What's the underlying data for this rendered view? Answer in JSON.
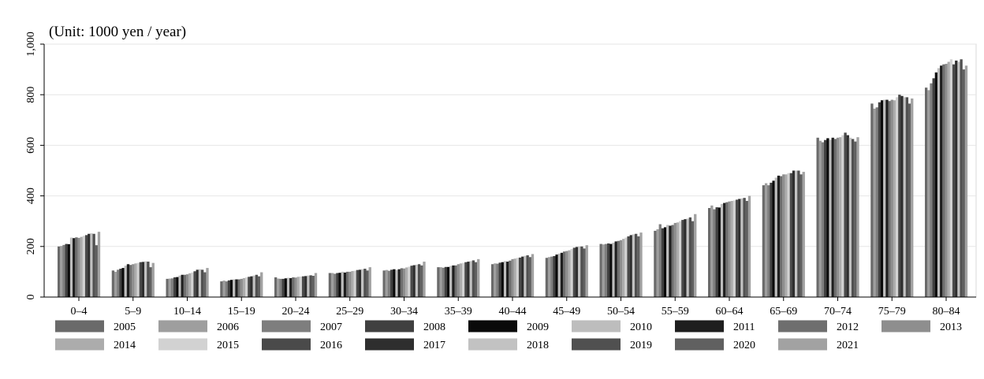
{
  "chart_data": {
    "type": "bar",
    "title": "",
    "unit_note": "(Unit: 1000 yen / year)",
    "xlabel": "",
    "ylabel": "",
    "ylim": [
      0,
      1000
    ],
    "yticks": [
      0,
      200,
      400,
      600,
      800,
      1000
    ],
    "ytick_labels": [
      "0",
      "200",
      "400",
      "600",
      "800",
      "1,000"
    ],
    "grid": true,
    "legend_position": "bottom",
    "categories": [
      "0–4",
      "5–9",
      "10–14",
      "15–19",
      "20–24",
      "25–29",
      "30–34",
      "35–39",
      "40–44",
      "45–49",
      "50–54",
      "55–59",
      "60–64",
      "65–69",
      "70–74",
      "75–79",
      "80–84"
    ],
    "series": [
      {
        "name": "2005",
        "color": "#6a6a6a",
        "values": [
          200,
          105,
          72,
          62,
          78,
          95,
          105,
          118,
          130,
          155,
          210,
          262,
          352,
          442,
          630,
          765,
          828
        ]
      },
      {
        "name": "2006",
        "color": "#9e9e9e",
        "values": [
          202,
          100,
          73,
          65,
          73,
          95,
          107,
          118,
          133,
          158,
          208,
          268,
          362,
          450,
          618,
          745,
          818
        ]
      },
      {
        "name": "2007",
        "color": "#7e7e7e",
        "values": [
          206,
          108,
          74,
          62,
          72,
          92,
          104,
          116,
          132,
          160,
          210,
          288,
          347,
          442,
          612,
          750,
          845
        ]
      },
      {
        "name": "2008",
        "color": "#404040",
        "values": [
          210,
          112,
          78,
          66,
          72,
          95,
          108,
          119,
          136,
          162,
          212,
          272,
          355,
          452,
          621,
          770,
          865
        ]
      },
      {
        "name": "2009",
        "color": "#0a0a0a",
        "values": [
          209,
          115,
          79,
          68,
          74,
          96,
          110,
          119,
          138,
          168,
          210,
          276,
          354,
          460,
          628,
          778,
          888
        ]
      },
      {
        "name": "2010",
        "color": "#bdbdbd",
        "values": [
          235,
          124,
          85,
          70,
          76,
          100,
          107,
          123,
          142,
          172,
          215,
          285,
          368,
          472,
          622,
          780,
          905
        ]
      },
      {
        "name": "2011",
        "color": "#1e1e1e",
        "values": [
          233,
          130,
          88,
          70,
          75,
          97,
          110,
          125,
          140,
          175,
          220,
          282,
          372,
          480,
          630,
          780,
          915
        ]
      },
      {
        "name": "2012",
        "color": "#6e6e6e",
        "values": [
          236,
          127,
          88,
          70,
          78,
          100,
          114,
          125,
          144,
          180,
          222,
          285,
          375,
          478,
          625,
          775,
          920
        ]
      },
      {
        "name": "2013",
        "color": "#8e8e8e",
        "values": [
          234,
          130,
          90,
          72,
          77,
          100,
          113,
          130,
          150,
          182,
          225,
          293,
          378,
          485,
          630,
          780,
          922
        ]
      },
      {
        "name": "2014",
        "color": "#acacac",
        "values": [
          238,
          133,
          94,
          75,
          80,
          103,
          117,
          133,
          152,
          185,
          230,
          295,
          380,
          485,
          632,
          778,
          930
        ]
      },
      {
        "name": "2015",
        "color": "#d2d2d2",
        "values": [
          242,
          135,
          97,
          78,
          81,
          104,
          120,
          135,
          155,
          190,
          235,
          300,
          382,
          490,
          640,
          790,
          940
        ]
      },
      {
        "name": "2016",
        "color": "#4a4a4a",
        "values": [
          245,
          138,
          102,
          80,
          82,
          107,
          124,
          138,
          156,
          195,
          240,
          305,
          385,
          490,
          650,
          800,
          920
        ]
      },
      {
        "name": "2017",
        "color": "#2e2e2e",
        "values": [
          250,
          139,
          108,
          82,
          83,
          108,
          126,
          140,
          160,
          198,
          245,
          308,
          388,
          500,
          640,
          795,
          935
        ]
      },
      {
        "name": "2018",
        "color": "#c2c2c2",
        "values": [
          252,
          141,
          110,
          85,
          85,
          110,
          128,
          142,
          163,
          200,
          248,
          310,
          390,
          500,
          630,
          790,
          930
        ]
      },
      {
        "name": "2019",
        "color": "#505050",
        "values": [
          250,
          140,
          108,
          88,
          86,
          112,
          130,
          145,
          165,
          200,
          250,
          315,
          392,
          500,
          625,
          790,
          940
        ]
      },
      {
        "name": "2020",
        "color": "#606060",
        "values": [
          205,
          118,
          98,
          82,
          84,
          105,
          125,
          138,
          158,
          192,
          240,
          300,
          380,
          485,
          615,
          765,
          900
        ]
      },
      {
        "name": "2021",
        "color": "#a2a2a2",
        "values": [
          258,
          135,
          115,
          98,
          95,
          118,
          140,
          150,
          170,
          205,
          255,
          328,
          400,
          495,
          632,
          785,
          915
        ]
      }
    ]
  }
}
